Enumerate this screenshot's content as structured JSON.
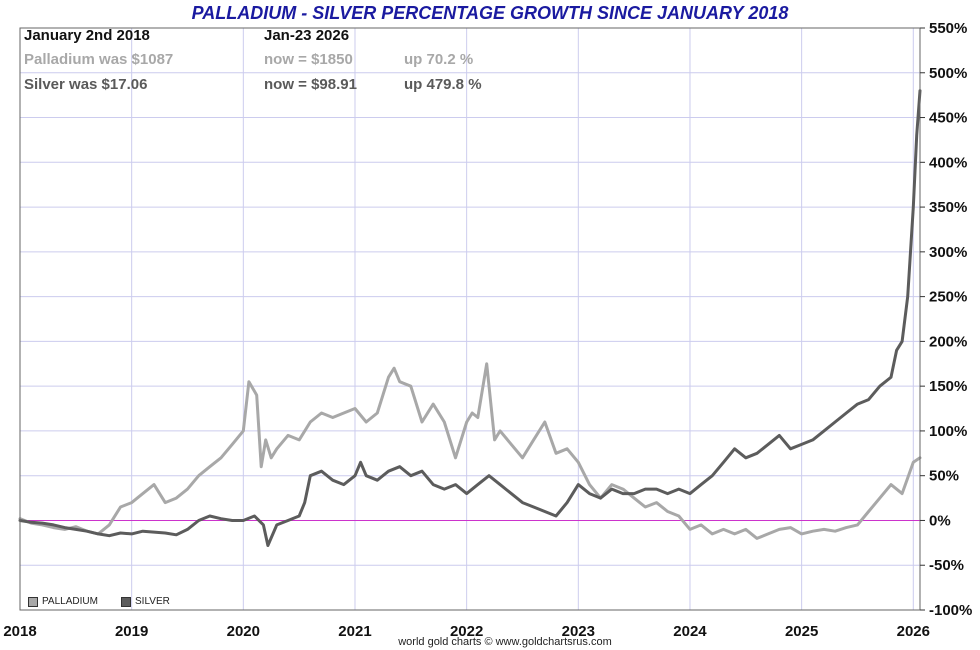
{
  "title": "PALLADIUM - SILVER PERCENTAGE GROWTH SINCE JANUARY 2018",
  "info": {
    "start_label": "January 2nd 2018",
    "end_label": "Jan-23  2026",
    "palladium_start": "Palladium was $1087",
    "palladium_now": "now = $1850",
    "palladium_up": "up 70.2 %",
    "silver_start": "Silver was $17.06",
    "silver_now": "now = $98.91",
    "silver_up": "up 479.8 %"
  },
  "legend": {
    "palladium": "PALLADIUM",
    "silver": "SILVER"
  },
  "credit": "world gold charts © www.goldchartsrus.com",
  "colors": {
    "palladium": "#a8a8a8",
    "silver": "#5c5c5c",
    "zero_line": "#cc33cc",
    "grid": "#ccccee",
    "title": "#1a1aa0"
  },
  "chart_data": {
    "type": "line",
    "title": "PALLADIUM - SILVER PERCENTAGE GROWTH SINCE JANUARY 2018",
    "xlim": [
      2018.0,
      2026.06
    ],
    "ylim": [
      -100,
      550
    ],
    "x_ticks": [
      "2018",
      "2019",
      "2020",
      "2021",
      "2022",
      "2023",
      "2024",
      "2025",
      "2026"
    ],
    "y_ticks": [
      "550%",
      "500%",
      "450%",
      "400%",
      "350%",
      "300%",
      "250%",
      "200%",
      "150%",
      "100%",
      "50%",
      "0%",
      "-50%",
      "-100%"
    ],
    "grid": true,
    "legend_position": "bottom-left",
    "series": [
      {
        "name": "PALLADIUM",
        "x": [
          2018.0,
          2018.1,
          2018.2,
          2018.3,
          2018.4,
          2018.5,
          2018.6,
          2018.7,
          2018.8,
          2018.9,
          2019.0,
          2019.1,
          2019.2,
          2019.3,
          2019.4,
          2019.5,
          2019.6,
          2019.7,
          2019.8,
          2019.9,
          2020.0,
          2020.05,
          2020.12,
          2020.16,
          2020.2,
          2020.25,
          2020.3,
          2020.4,
          2020.5,
          2020.6,
          2020.7,
          2020.8,
          2020.9,
          2021.0,
          2021.1,
          2021.2,
          2021.3,
          2021.35,
          2021.4,
          2021.5,
          2021.6,
          2021.7,
          2021.8,
          2021.9,
          2022.0,
          2022.05,
          2022.1,
          2022.18,
          2022.25,
          2022.3,
          2022.4,
          2022.5,
          2022.6,
          2022.7,
          2022.8,
          2022.9,
          2023.0,
          2023.1,
          2023.2,
          2023.3,
          2023.4,
          2023.5,
          2023.6,
          2023.7,
          2023.8,
          2023.9,
          2024.0,
          2024.1,
          2024.2,
          2024.3,
          2024.4,
          2024.5,
          2024.6,
          2024.7,
          2024.8,
          2024.9,
          2025.0,
          2025.1,
          2025.2,
          2025.3,
          2025.4,
          2025.5,
          2025.6,
          2025.7,
          2025.8,
          2025.9,
          2026.0,
          2026.06
        ],
        "values": [
          2,
          -3,
          -5,
          -8,
          -10,
          -7,
          -12,
          -15,
          -5,
          15,
          20,
          30,
          40,
          20,
          25,
          35,
          50,
          60,
          70,
          85,
          100,
          155,
          140,
          60,
          90,
          70,
          80,
          95,
          90,
          110,
          120,
          115,
          120,
          125,
          110,
          120,
          160,
          170,
          155,
          150,
          110,
          130,
          110,
          70,
          110,
          120,
          115,
          175,
          90,
          100,
          85,
          70,
          90,
          110,
          75,
          80,
          65,
          40,
          25,
          40,
          35,
          25,
          15,
          20,
          10,
          5,
          -10,
          -5,
          -15,
          -10,
          -15,
          -10,
          -20,
          -15,
          -10,
          -8,
          -15,
          -12,
          -10,
          -12,
          -8,
          -5,
          10,
          25,
          40,
          30,
          65,
          70
        ]
      },
      {
        "name": "SILVER",
        "x": [
          2018.0,
          2018.1,
          2018.2,
          2018.3,
          2018.4,
          2018.5,
          2018.6,
          2018.7,
          2018.8,
          2018.9,
          2019.0,
          2019.1,
          2019.2,
          2019.3,
          2019.4,
          2019.5,
          2019.6,
          2019.7,
          2019.8,
          2019.9,
          2020.0,
          2020.1,
          2020.18,
          2020.22,
          2020.3,
          2020.4,
          2020.5,
          2020.55,
          2020.6,
          2020.7,
          2020.8,
          2020.9,
          2021.0,
          2021.05,
          2021.1,
          2021.2,
          2021.3,
          2021.4,
          2021.5,
          2021.6,
          2021.7,
          2021.8,
          2021.9,
          2022.0,
          2022.1,
          2022.2,
          2022.3,
          2022.4,
          2022.5,
          2022.6,
          2022.7,
          2022.8,
          2022.9,
          2023.0,
          2023.1,
          2023.2,
          2023.3,
          2023.4,
          2023.5,
          2023.6,
          2023.7,
          2023.8,
          2023.9,
          2024.0,
          2024.1,
          2024.2,
          2024.3,
          2024.4,
          2024.5,
          2024.6,
          2024.7,
          2024.8,
          2024.9,
          2025.0,
          2025.1,
          2025.2,
          2025.3,
          2025.4,
          2025.5,
          2025.6,
          2025.7,
          2025.8,
          2025.85,
          2025.9,
          2025.95,
          2026.0,
          2026.03,
          2026.06
        ],
        "values": [
          0,
          -2,
          -3,
          -5,
          -8,
          -10,
          -12,
          -15,
          -17,
          -14,
          -15,
          -12,
          -13,
          -14,
          -16,
          -10,
          0,
          5,
          2,
          0,
          0,
          5,
          -5,
          -28,
          -5,
          0,
          5,
          20,
          50,
          55,
          45,
          40,
          50,
          65,
          50,
          45,
          55,
          60,
          50,
          55,
          40,
          35,
          40,
          30,
          40,
          50,
          40,
          30,
          20,
          15,
          10,
          5,
          20,
          40,
          30,
          25,
          35,
          30,
          30,
          35,
          35,
          30,
          35,
          30,
          40,
          50,
          65,
          80,
          70,
          75,
          85,
          95,
          80,
          85,
          90,
          100,
          110,
          120,
          130,
          135,
          150,
          160,
          190,
          200,
          250,
          350,
          430,
          480
        ]
      }
    ]
  }
}
